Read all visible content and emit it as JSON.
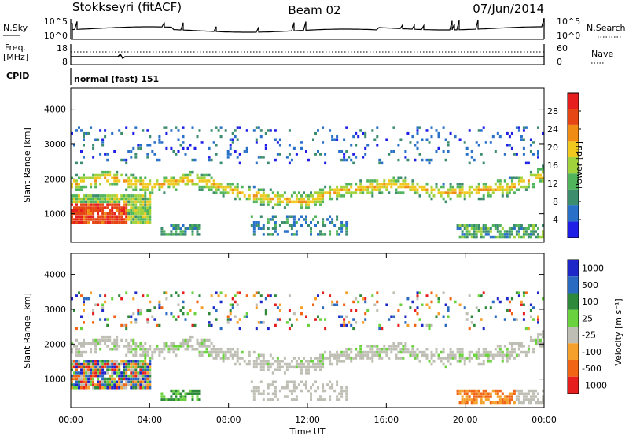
{
  "header": {
    "site": "Stokkseyri (fitACF)",
    "beam": "Beam 02",
    "date": "07/Jun/2014"
  },
  "nsky_panel": {
    "left_label": "N.Sky",
    "right_label": "N.Search",
    "left_ticks": [
      "10^5",
      "10^0"
    ],
    "right_ticks": [
      "10^5",
      "10^0"
    ]
  },
  "freq_panel": {
    "left_label_line1": "Freq.",
    "left_label_line2": "[MHz]",
    "right_label": "Nave",
    "left_ticks": [
      "18",
      "8"
    ],
    "right_ticks": [
      "60",
      "0"
    ]
  },
  "cpid_panel": {
    "label": "CPID",
    "value": "normal (fast) 151"
  },
  "chart_data": [
    {
      "type": "heatmap",
      "quantity": "Power",
      "ylabel": "Slant Range [km]",
      "ylim": [
        180,
        4600
      ],
      "yticks": [
        "1000",
        "2000",
        "3000",
        "4000"
      ],
      "ytick_values": [
        1000,
        2000,
        3000,
        4000
      ],
      "xlim": [
        0,
        24
      ],
      "colorbar": {
        "label": "Power [dB]",
        "range": [
          0,
          32
        ],
        "tick_labels": [
          "4",
          "8",
          "12",
          "16",
          "20",
          "24",
          "28"
        ],
        "tick_values": [
          4,
          8,
          12,
          16,
          20,
          24,
          28
        ],
        "colors": [
          "#1e1ee6",
          "#2870c8",
          "#3c8c6e",
          "#50b45a",
          "#a0d23c",
          "#f0c81e",
          "#f08c14",
          "#e64614",
          "#e61e1e"
        ]
      },
      "regions": [
        {
          "name": "main-echo-band",
          "t_start": 0,
          "t_end": 24,
          "r_center": [
            1800,
            1900,
            2000,
            1850,
            1750,
            1850,
            1950,
            1850,
            1650,
            1500,
            1400,
            1350,
            1300,
            1550,
            1650,
            1700,
            1800,
            1750,
            1650,
            1550,
            1600,
            1650,
            1700,
            1850,
            2100
          ]
        },
        {
          "name": "strong-near-range-echo",
          "t_start": 0,
          "t_end": 4,
          "r_center": 1050,
          "max_db": 30
        },
        {
          "name": "scatter-far-range",
          "t_start": 0,
          "t_end": 24,
          "r_range": [
            2400,
            3500
          ]
        },
        {
          "name": "morning-near-echo",
          "t_start": 19.5,
          "t_end": 24,
          "r_center": 500
        }
      ]
    },
    {
      "type": "heatmap",
      "quantity": "Velocity",
      "ylabel": "Slant Range [km]",
      "ylim": [
        180,
        4600
      ],
      "yticks": [
        "1000",
        "2000",
        "3000",
        "4000"
      ],
      "ytick_values": [
        1000,
        2000,
        3000,
        4000
      ],
      "xlim": [
        0,
        24
      ],
      "xlabel": "Time UT",
      "xticks": [
        "00:00",
        "04:00",
        "08:00",
        "12:00",
        "16:00",
        "20:00",
        "00:00"
      ],
      "xtick_values": [
        0,
        4,
        8,
        12,
        16,
        20,
        24
      ],
      "colorbar": {
        "label": "Velocity [m s⁻¹]",
        "tick_labels": [
          "1000",
          "500",
          "100",
          "25",
          "-25",
          "-100",
          "-500",
          "-1000"
        ],
        "colors": [
          "#1e28c8",
          "#2a6ac0",
          "#2e8a3a",
          "#6ad23c",
          "#bebeb4",
          "#f5a02a",
          "#f06414",
          "#e61e1e"
        ]
      },
      "regions": [
        {
          "name": "ground-scatter-band",
          "t_start": 0,
          "t_end": 24,
          "velocity": "low (grey)"
        },
        {
          "name": "near-range-flow",
          "t_start": 0,
          "t_end": 4,
          "velocity": "mixed positive/negative"
        },
        {
          "name": "morning-flow",
          "t_start": 19.5,
          "t_end": 22.5,
          "velocity": "-100 to -500"
        }
      ]
    }
  ]
}
